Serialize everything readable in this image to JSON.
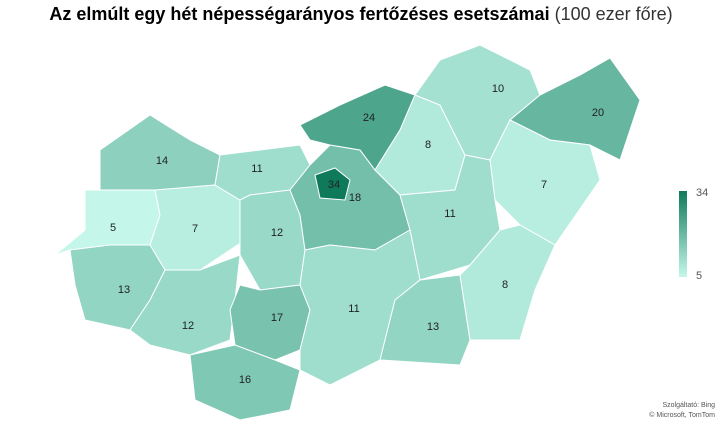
{
  "chart_data": {
    "type": "choropleth",
    "title": "Az elmúlt egy hét népességarányos fertőzéses esetszámai",
    "subtitle": "(100 ezer főre)",
    "values": [
      5,
      14,
      7,
      13,
      12,
      11,
      12,
      17,
      16,
      18,
      34,
      24,
      8,
      10,
      20,
      7,
      11,
      11,
      13,
      8
    ],
    "legend": {
      "min": 5,
      "max": 34
    },
    "color_scale": [
      "#c4f7ea",
      "#0f7a5a"
    ],
    "attribution": [
      "Szolgáltató: Bing",
      "© Microsoft, TomTom"
    ]
  }
}
